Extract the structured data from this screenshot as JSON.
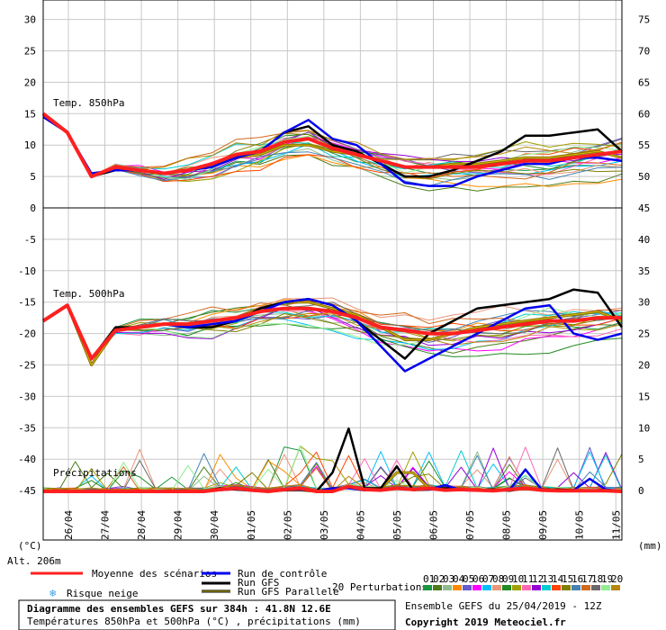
{
  "chart_data": {
    "type": "line",
    "x": [
      "26/04",
      "27/04",
      "28/04",
      "29/04",
      "30/04",
      "01/05",
      "02/05",
      "03/05",
      "04/05",
      "05/05",
      "06/05",
      "07/05",
      "08/05",
      "09/05",
      "10/05",
      "11/05"
    ],
    "panels": [
      {
        "title": "Temp. 850hPa",
        "left_ticks": [
          "30",
          "25",
          "20",
          "15",
          "10",
          "5",
          "0"
        ],
        "right_ticks": [
          "75",
          "70",
          "65",
          "60",
          "55",
          "50",
          "45"
        ]
      },
      {
        "title": "Temp. 500hPa",
        "left_ticks": [
          "-5",
          "-10",
          "-15",
          "-20",
          "-25",
          "-30",
          "-35",
          "-40",
          "-45"
        ],
        "right_ticks": [
          "40",
          "35",
          "30",
          "25",
          "20",
          "15",
          "10",
          "5",
          "0"
        ]
      },
      {
        "title": "Précipitations"
      }
    ],
    "left_unit": "(°C)",
    "right_unit": "(mm)",
    "altitude_label": "Alt. 206m",
    "t850": {
      "mean": [
        15,
        12,
        5,
        6.5,
        6,
        5.5,
        6,
        7,
        8.5,
        9,
        10.5,
        11,
        9.5,
        8.5,
        7.5,
        6.5,
        6.5,
        6.5,
        6.5,
        7,
        7.5,
        7.5,
        8,
        8.5,
        9
      ],
      "control": [
        14.5,
        12,
        5.5,
        6,
        6,
        5.5,
        6,
        6.5,
        8,
        9,
        12,
        14,
        11,
        10,
        7,
        4,
        3.5,
        3.5,
        5,
        6,
        7,
        7,
        8,
        8,
        7.5
      ],
      "gfs": [
        14.5,
        12,
        5,
        6,
        6,
        5.5,
        6,
        6.5,
        8,
        9,
        12,
        13,
        10,
        9,
        7,
        5,
        5,
        6,
        7.5,
        9,
        11.5,
        11.5,
        12,
        12.5,
        9
      ],
      "gfs_parallel": [
        15,
        12,
        5,
        6.5,
        6,
        5.5,
        6,
        7,
        8,
        8.5,
        10,
        10,
        9,
        8.5,
        7.5,
        6.5,
        6.5,
        7,
        7,
        7.5,
        8,
        8,
        8.5,
        9,
        8
      ]
    },
    "t500": {
      "mean": [
        -18,
        -15.5,
        -24,
        -19.5,
        -19,
        -18.5,
        -18.5,
        -18,
        -17.5,
        -16.5,
        -16,
        -16,
        -16.5,
        -17.5,
        -19,
        -19.5,
        -20,
        -20,
        -19.5,
        -19,
        -18.5,
        -18,
        -18,
        -17.5,
        -17.5
      ],
      "control": [
        -18,
        -15.5,
        -24,
        -19.5,
        -19,
        -18.5,
        -19,
        -18.5,
        -18,
        -16.5,
        -15,
        -14.5,
        -15.5,
        -18,
        -22,
        -26,
        -24,
        -22,
        -20,
        -18,
        -16,
        -15.5,
        -20,
        -21,
        -20
      ],
      "gfs": [
        -18,
        -15.5,
        -24,
        -19,
        -19,
        -18.5,
        -19,
        -19,
        -18,
        -16,
        -15,
        -14.5,
        -15.5,
        -18,
        -21,
        -24,
        -20,
        -18,
        -16,
        -15.5,
        -15,
        -14.5,
        -13,
        -13.5,
        -19
      ],
      "gfs_parallel": [
        -18,
        -15.5,
        -25,
        -19.5,
        -19,
        -18.5,
        -18.5,
        -18,
        -17.5,
        -16,
        -15,
        -15,
        -16,
        -17,
        -19,
        -21,
        -21,
        -20,
        -19,
        -18.5,
        -18,
        -17.5,
        -17,
        -16.5,
        -18
      ]
    },
    "precip": {
      "mean": [
        0,
        0,
        0,
        0,
        0,
        0,
        0,
        0,
        0,
        0,
        0,
        0.3,
        0.5,
        0.2,
        0,
        0.3,
        0.5,
        0,
        0,
        0.8,
        0.3,
        0.2,
        0.5,
        0.3,
        0.5,
        0.2,
        0.3,
        0.2,
        0.1,
        0.3,
        0.5,
        0.2,
        0.1,
        0.1,
        0.1,
        0.1,
        0
      ],
      "control": [
        0,
        0,
        0,
        0,
        0,
        0,
        0,
        0,
        0,
        0,
        0,
        0.2,
        0.4,
        0.1,
        0,
        0.2,
        0.3,
        0,
        0.5,
        0.5,
        0.2,
        0.2,
        0.6,
        0.4,
        0.3,
        1,
        0.2,
        0.1,
        0.1,
        0.2,
        3.5,
        0.3,
        0.1,
        0.2,
        2,
        0.3,
        0
      ],
      "gfs": [
        0,
        0,
        0,
        0,
        0,
        0,
        0,
        0,
        0,
        0,
        0,
        0.5,
        0.3,
        0.1,
        0,
        0.2,
        0.3,
        0,
        3,
        10,
        0.5,
        0.5,
        4,
        0.2,
        0.3,
        0.5,
        0.4,
        0.2,
        0.3,
        0.1,
        0.5,
        0.3,
        0.3,
        0.2,
        0.1,
        0.3,
        0
      ],
      "gfs_parallel": [
        0,
        0,
        0,
        0,
        0,
        0,
        0,
        0,
        0,
        0,
        0,
        0.3,
        0.4,
        0.2,
        0,
        0.2,
        0.2,
        0,
        0.5,
        0.6,
        0.2,
        0.4,
        3,
        3,
        0.5,
        0.5,
        0.3,
        0.2,
        0.2,
        0.3,
        0.4,
        0.3,
        0.1,
        0.2,
        0.1,
        0.2,
        0
      ]
    },
    "series_colors": {
      "mean": "#ff2020",
      "control": "#0000ee",
      "gfs": "#000000",
      "gfs_parallel": "#8b6b00"
    },
    "perturbation_colors": [
      "#1a9641",
      "#4c7c1a",
      "#8fbc8f",
      "#ff8c00",
      "#6a5acd",
      "#ff00ff",
      "#00bfff",
      "#e9967a",
      "#228b22",
      "#a0a000",
      "#ff69b4",
      "#9400d3",
      "#00ced1",
      "#ff4500",
      "#808000",
      "#4682b4",
      "#d2691e",
      "#696969",
      "#90ee90",
      "#b8860b"
    ],
    "grid": true
  },
  "legend": {
    "mean_label": "Moyenne des scénarios",
    "snow_label": "Risque neige",
    "control_label": "Run de contrôle",
    "gfs_label": "Run GFS",
    "gfs_parallel_label": "Run GFS Parallele",
    "perturbations_label": "20 Perturbations",
    "perturbation_numbers": [
      "01",
      "02",
      "03",
      "04",
      "05",
      "06",
      "07",
      "08",
      "09",
      "10",
      "11",
      "12",
      "13",
      "14",
      "15",
      "16",
      "17",
      "18",
      "19",
      "20"
    ]
  },
  "footer": {
    "title": "Diagramme des ensembles GEFS sur 384h : 41.8N 12.6E",
    "subtitle": "Températures 850hPa et 500hPa (°C) , précipitations (mm)",
    "run_info": "Ensemble GEFS du 25/04/2019 - 12Z",
    "copyright": "Copyright 2019 Meteociel.fr"
  }
}
